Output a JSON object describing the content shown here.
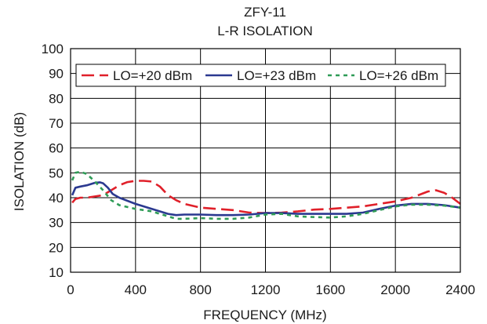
{
  "chart_data": {
    "type": "line",
    "title": "ZFY-11",
    "subtitle": "L-R ISOLATION",
    "xlabel": "FREQUENCY (MHz)",
    "ylabel": "ISOLATION (dB)",
    "xlim": [
      0,
      2400
    ],
    "ylim": [
      10,
      100
    ],
    "x_ticks": [
      0,
      400,
      800,
      1200,
      1600,
      2000,
      2400
    ],
    "y_ticks": [
      10,
      20,
      30,
      40,
      50,
      60,
      70,
      80,
      90,
      100
    ],
    "grid": true,
    "legend_position": "top",
    "series": [
      {
        "name": "LO=+20 dBm",
        "color": "#e0202a",
        "dash": "long-dash",
        "x": [
          10,
          30,
          60,
          100,
          150,
          200,
          250,
          300,
          350,
          400,
          450,
          500,
          550,
          600,
          650,
          700,
          800,
          900,
          1000,
          1100,
          1200,
          1300,
          1400,
          1500,
          1600,
          1700,
          1800,
          1900,
          2000,
          2100,
          2200,
          2250,
          2300,
          2350,
          2400
        ],
        "y": [
          38,
          39.5,
          40,
          40,
          40.5,
          41,
          43,
          45,
          46.3,
          46.8,
          46.8,
          46.5,
          44.5,
          41,
          39,
          37.5,
          36,
          35.5,
          35,
          34,
          33.8,
          34,
          34.5,
          35.2,
          35.5,
          36,
          36.5,
          37.5,
          38.5,
          40,
          42.5,
          43,
          42,
          40,
          37.5
        ]
      },
      {
        "name": "LO=+23 dBm",
        "color": "#2b3990",
        "dash": "solid",
        "x": [
          10,
          30,
          60,
          100,
          150,
          180,
          200,
          230,
          260,
          300,
          400,
          500,
          600,
          650,
          700,
          800,
          900,
          1000,
          1100,
          1200,
          1300,
          1400,
          1500,
          1600,
          1700,
          1800,
          1900,
          2000,
          2100,
          2200,
          2300,
          2400
        ],
        "y": [
          41,
          44,
          44.5,
          45,
          46,
          46.2,
          45.8,
          44,
          41.5,
          40,
          37.5,
          35.5,
          33.5,
          33,
          33.2,
          33.2,
          33,
          33,
          33.2,
          33.8,
          33.8,
          33.5,
          33.5,
          33.5,
          33.5,
          34,
          35.5,
          36.8,
          37.5,
          37.5,
          37,
          36
        ]
      },
      {
        "name": "LO=+26 dBm",
        "color": "#2f9c57",
        "dash": "short-dash",
        "x": [
          10,
          30,
          60,
          100,
          150,
          200,
          250,
          300,
          400,
          500,
          600,
          650,
          700,
          800,
          900,
          1000,
          1100,
          1200,
          1300,
          1400,
          1500,
          1600,
          1700,
          1800,
          1900,
          2000,
          2100,
          2200,
          2300,
          2400
        ],
        "y": [
          47,
          50,
          50.5,
          49.5,
          46.5,
          43,
          39,
          37,
          35.5,
          34.5,
          32.5,
          31.5,
          31.5,
          31.8,
          31.5,
          31.5,
          32,
          33.2,
          33.5,
          32.5,
          32.2,
          32,
          32.5,
          33.5,
          35,
          36.5,
          37.2,
          37.2,
          36.8,
          36
        ]
      }
    ]
  }
}
